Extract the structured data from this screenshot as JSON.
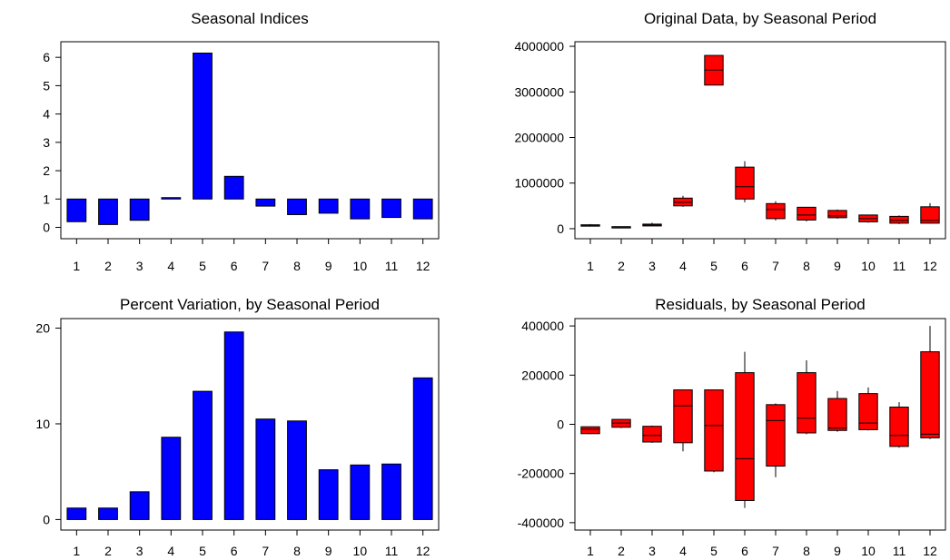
{
  "chart_data": [
    {
      "type": "bar",
      "title": "Seasonal Indices",
      "base": 1,
      "categories": [
        "1",
        "2",
        "3",
        "4",
        "5",
        "6",
        "7",
        "8",
        "9",
        "10",
        "11",
        "12"
      ],
      "values": [
        0.2,
        0.1,
        0.25,
        1.05,
        6.15,
        1.8,
        0.75,
        0.45,
        0.5,
        0.3,
        0.35,
        0.3
      ],
      "yticks": [
        0,
        1,
        2,
        3,
        4,
        5,
        6
      ],
      "ylim": [
        -0.4,
        6.55
      ],
      "color": "#0000ff"
    },
    {
      "type": "box",
      "title": "Original Data, by Seasonal Period",
      "categories": [
        "1",
        "2",
        "3",
        "4",
        "5",
        "6",
        "7",
        "8",
        "9",
        "10",
        "11",
        "12"
      ],
      "boxes": [
        {
          "min": 60000,
          "q1": 65000,
          "median": 75000,
          "q3": 85000,
          "max": 100000
        },
        {
          "min": 30000,
          "q1": 35000,
          "median": 40000,
          "q3": 45000,
          "max": 50000
        },
        {
          "min": 55000,
          "q1": 60000,
          "median": 80000,
          "q3": 100000,
          "max": 130000
        },
        {
          "min": 480000,
          "q1": 500000,
          "median": 580000,
          "q3": 670000,
          "max": 720000
        },
        {
          "min": 3150000,
          "q1": 3150000,
          "median": 3480000,
          "q3": 3800000,
          "max": 3800000
        },
        {
          "min": 580000,
          "q1": 650000,
          "median": 920000,
          "q3": 1350000,
          "max": 1480000
        },
        {
          "min": 180000,
          "q1": 220000,
          "median": 420000,
          "q3": 550000,
          "max": 600000
        },
        {
          "min": 160000,
          "q1": 190000,
          "median": 300000,
          "q3": 470000,
          "max": 470000
        },
        {
          "min": 220000,
          "q1": 240000,
          "median": 280000,
          "q3": 400000,
          "max": 420000
        },
        {
          "min": 130000,
          "q1": 150000,
          "median": 220000,
          "q3": 300000,
          "max": 300000
        },
        {
          "min": 100000,
          "q1": 120000,
          "median": 180000,
          "q3": 270000,
          "max": 290000
        },
        {
          "min": 110000,
          "q1": 120000,
          "median": 180000,
          "q3": 480000,
          "max": 560000
        }
      ],
      "yticks": [
        0,
        1000000,
        2000000,
        3000000,
        4000000
      ],
      "ylim": [
        -220000,
        4100000
      ],
      "color": "#ff0000"
    },
    {
      "type": "bar",
      "title": "Percent Variation, by Seasonal Period",
      "base": 0,
      "categories": [
        "1",
        "2",
        "3",
        "4",
        "5",
        "6",
        "7",
        "8",
        "9",
        "10",
        "11",
        "12"
      ],
      "values": [
        1.2,
        1.2,
        2.9,
        8.6,
        13.4,
        19.6,
        10.5,
        10.3,
        5.2,
        5.7,
        5.8,
        14.8
      ],
      "yticks": [
        0,
        10,
        20
      ],
      "ylim": [
        -1.1,
        21
      ],
      "color": "#0000ff"
    },
    {
      "type": "box",
      "title": "Residuals, by Seasonal Period",
      "categories": [
        "1",
        "2",
        "3",
        "4",
        "5",
        "6",
        "7",
        "8",
        "9",
        "10",
        "11",
        "12"
      ],
      "boxes": [
        {
          "min": -40000,
          "q1": -38000,
          "median": -20000,
          "q3": -10000,
          "max": -10000
        },
        {
          "min": -15000,
          "q1": -12000,
          "median": 5000,
          "q3": 20000,
          "max": 22000
        },
        {
          "min": -75000,
          "q1": -72000,
          "median": -45000,
          "q3": -8000,
          "max": -5000
        },
        {
          "min": -110000,
          "q1": -75000,
          "median": 75000,
          "q3": 140000,
          "max": 140000
        },
        {
          "min": -195000,
          "q1": -190000,
          "median": -5000,
          "q3": 140000,
          "max": 140000
        },
        {
          "min": -340000,
          "q1": -310000,
          "median": -140000,
          "q3": 210000,
          "max": 295000
        },
        {
          "min": -215000,
          "q1": -170000,
          "median": 15000,
          "q3": 80000,
          "max": 85000
        },
        {
          "min": -40000,
          "q1": -35000,
          "median": 25000,
          "q3": 210000,
          "max": 260000
        },
        {
          "min": -30000,
          "q1": -25000,
          "median": -15000,
          "q3": 105000,
          "max": 135000
        },
        {
          "min": -25000,
          "q1": -22000,
          "median": 5000,
          "q3": 125000,
          "max": 150000
        },
        {
          "min": -95000,
          "q1": -90000,
          "median": -45000,
          "q3": 70000,
          "max": 90000
        },
        {
          "min": -60000,
          "q1": -55000,
          "median": -40000,
          "q3": 295000,
          "max": 400000
        }
      ],
      "yticks": [
        -400000,
        -200000,
        0,
        200000,
        400000
      ],
      "ylim": [
        -430000,
        430000
      ],
      "color": "#ff0000"
    }
  ]
}
